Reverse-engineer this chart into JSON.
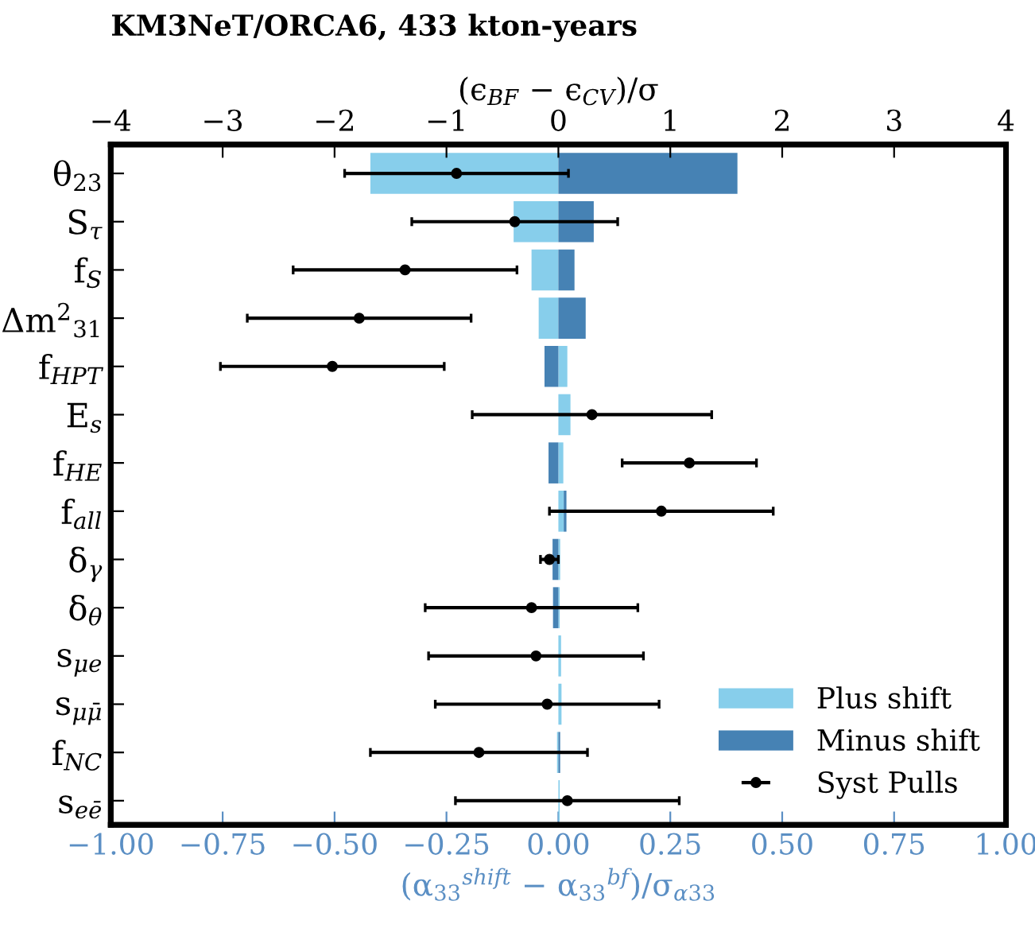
{
  "chart_data": {
    "type": "bar",
    "orientation": "horizontal",
    "title": "KM3NeT/ORCA6, 433 kton-years",
    "xlabel": "(α$_{33}$$^{shift}$ − α$_{33}$$^{bf}$)/σ$_{α33}$",
    "x2label": "(ϵ$_{BF}$ − ϵ$_{CV}$)/σ",
    "categories": [
      "θ$_{23}$",
      "S$_{τ}$",
      "f$_{S}$",
      "Δm$^{2}$$_{31}$",
      "f$_{HPT}$",
      "E$_{s}$",
      "f$_{HE}$",
      "f$_{all}$",
      "δ$_{γ}$",
      "δ$_{θ}$",
      "s$_{μe}$",
      "s$_{μμ̄}$",
      "f$_{NC}$",
      "s$_{eē}$"
    ],
    "xlim": [
      -1,
      1
    ],
    "xticks": [
      {
        "value": -1,
        "label": "−1.00"
      },
      {
        "value": -0.75,
        "label": "−0.75"
      },
      {
        "value": -0.5,
        "label": "−0.50"
      },
      {
        "value": -0.25,
        "label": "−0.25"
      },
      {
        "value": 0,
        "label": "0.00"
      },
      {
        "value": 0.25,
        "label": "0.25"
      },
      {
        "value": 0.5,
        "label": "0.50"
      },
      {
        "value": 0.75,
        "label": "0.75"
      },
      {
        "value": 1,
        "label": "1.00"
      }
    ],
    "x2lim": [
      -4,
      4
    ],
    "x2ticks": [
      {
        "value": -4,
        "label": "−4"
      },
      {
        "value": -3,
        "label": "−3"
      },
      {
        "value": -2,
        "label": "−2"
      },
      {
        "value": -1,
        "label": "−1"
      },
      0,
      1,
      2,
      3,
      4
    ],
    "series": [
      {
        "name": "Plus shift",
        "color": "#87ceeb",
        "values": [
          -0.42,
          -0.1,
          -0.06,
          -0.044,
          0.02,
          0.027,
          0.011,
          0.012,
          0.004,
          0.003,
          0.006,
          0.007,
          -0.003,
          0.003
        ]
      },
      {
        "name": "Minus shift",
        "color": "#4682b4",
        "values": [
          0.4,
          0.079,
          0.036,
          0.061,
          -0.031,
          0.0,
          -0.022,
          0.006,
          -0.013,
          -0.012,
          0.0,
          0.0,
          0.004,
          0.0
        ]
      },
      {
        "name": "Syst Pulls",
        "type": "scatter",
        "axis": "x2",
        "color": "#000000",
        "marker": "circle",
        "values": [
          -0.91,
          -0.39,
          -1.37,
          -1.78,
          -2.02,
          0.3,
          1.17,
          0.92,
          -0.08,
          -0.24,
          -0.2,
          -0.1,
          -0.71,
          0.08
        ],
        "errors": [
          1.0,
          0.92,
          1.0,
          1.0,
          1.0,
          1.07,
          0.6,
          1.0,
          0.08,
          0.95,
          0.96,
          1.0,
          0.97,
          1.0
        ]
      }
    ],
    "stacked": true,
    "legend": "bottom right",
    "grid": false
  }
}
